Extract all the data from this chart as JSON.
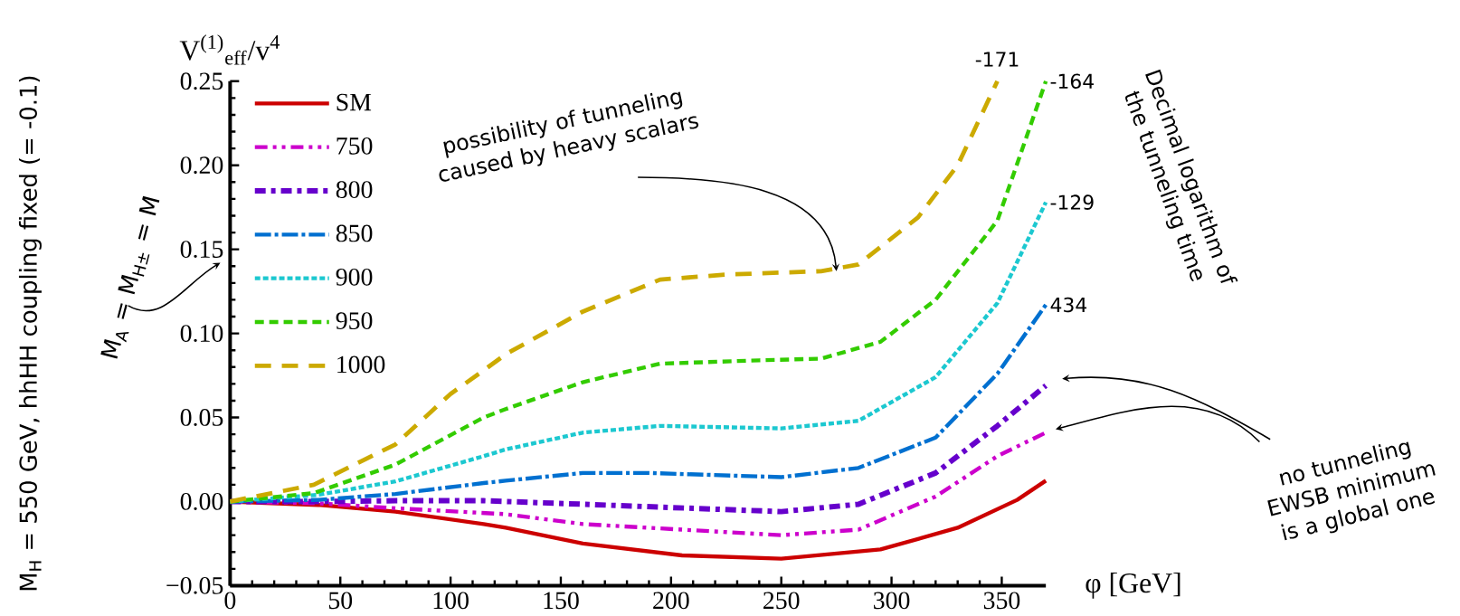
{
  "chart_data": {
    "type": "line",
    "xlabel": "φ [GeV]",
    "ylabel": "V$^{(1)}$$_{eff}$/v$^{4}$",
    "legend_title": "M$_{A}$ = M$_{H±}$ = M",
    "legend": "top left",
    "xlim": [
      0,
      370
    ],
    "ylim": [
      -0.05,
      0.25
    ],
    "xticks": [
      0,
      50,
      100,
      150,
      200,
      250,
      300,
      350
    ],
    "yticks": [
      {
        "value": -0.05,
        "label": "−0.05"
      },
      {
        "value": 0,
        "label": "0.00"
      },
      {
        "value": 0.05,
        "label": "0.05"
      },
      {
        "value": 0.1,
        "label": "0.10"
      },
      {
        "value": 0.15,
        "label": "0.15"
      },
      {
        "value": 0.2,
        "label": "0.20"
      },
      {
        "value": 0.25,
        "label": "0.25"
      }
    ],
    "series": [
      {
        "name": "SM",
        "color": "#cc0000",
        "line_style": "solid",
        "x": [
          0,
          40,
          75,
          115,
          125,
          160,
          205,
          250,
          295,
          330,
          357,
          370
        ],
        "values": [
          0,
          -0.002,
          -0.006,
          -0.0134,
          -0.0156,
          -0.025,
          -0.032,
          -0.034,
          -0.0285,
          -0.0156,
          0.001,
          0.0124
        ]
      },
      {
        "name": "750",
        "color": "#cc00cc",
        "line_style": "dashed",
        "x": [
          0,
          40,
          75,
          125,
          160,
          250,
          285,
          320,
          348,
          370
        ],
        "values": [
          0,
          -0.001,
          -0.004,
          -0.0075,
          -0.0134,
          -0.02,
          -0.0167,
          0.003,
          0.027,
          0.041
        ]
      },
      {
        "name": "800",
        "color": "#6600cc",
        "line_style": "dashed",
        "x": [
          0,
          40,
          75,
          115,
          160,
          250,
          285,
          320,
          348,
          370
        ],
        "values": [
          0,
          0,
          0.0005,
          0.0005,
          -0.0016,
          -0.006,
          -0.0016,
          0.017,
          0.045,
          0.069
        ]
      },
      {
        "name": "850",
        "color": "#0070d0",
        "line_style": "dashed",
        "x": [
          0,
          40,
          75,
          115,
          125,
          160,
          190,
          250,
          285,
          320,
          348,
          370
        ],
        "values": [
          0,
          0.001,
          0.0045,
          0.011,
          0.0124,
          0.017,
          0.017,
          0.0145,
          0.02,
          0.038,
          0.076,
          0.117
        ]
      },
      {
        "name": "900",
        "color": "#1cc8d0",
        "line_style": "dashed",
        "x": [
          0,
          40,
          75,
          115,
          125,
          160,
          195,
          250,
          285,
          320,
          348,
          370
        ],
        "values": [
          0,
          0.004,
          0.012,
          0.027,
          0.031,
          0.041,
          0.045,
          0.0435,
          0.048,
          0.074,
          0.118,
          0.178
        ]
      },
      {
        "name": "950",
        "color": "#33cc00",
        "line_style": "dashed",
        "x": [
          0,
          38,
          75,
          115,
          125,
          160,
          195,
          240,
          268,
          295,
          320,
          348,
          370
        ],
        "values": [
          0,
          0.005,
          0.022,
          0.05,
          0.055,
          0.071,
          0.082,
          0.084,
          0.085,
          0.095,
          0.12,
          0.167,
          0.25
        ]
      },
      {
        "name": "1000",
        "color": "#ccaa00",
        "line_style": "dashed",
        "x": [
          0,
          38,
          75,
          100,
          115,
          125,
          160,
          195,
          225,
          268,
          285,
          312,
          330,
          348
        ],
        "values": [
          0,
          0.01,
          0.034,
          0.064,
          0.078,
          0.0876,
          0.113,
          0.132,
          0.135,
          0.137,
          0.141,
          0.169,
          0.2,
          0.25
        ]
      }
    ],
    "annotations": [
      {
        "text": "-171",
        "x": 348,
        "y": 0.25
      },
      {
        "text": "-164",
        "x": 370,
        "y": 0.25
      },
      {
        "text": "-129",
        "x": 370,
        "y": 0.178
      },
      {
        "text": "434",
        "x": 370,
        "y": 0.117
      },
      {
        "text": "possibility of tunneling caused by heavy scalars",
        "x": 275,
        "y": 0.137
      },
      "Decimal logarithm of the tunneling time",
      "no tunneling EWSB minimum is a global one",
      "M$_{H}$ = 550 GeV, hhHH coupling fixed (= -0.1)"
    ]
  }
}
